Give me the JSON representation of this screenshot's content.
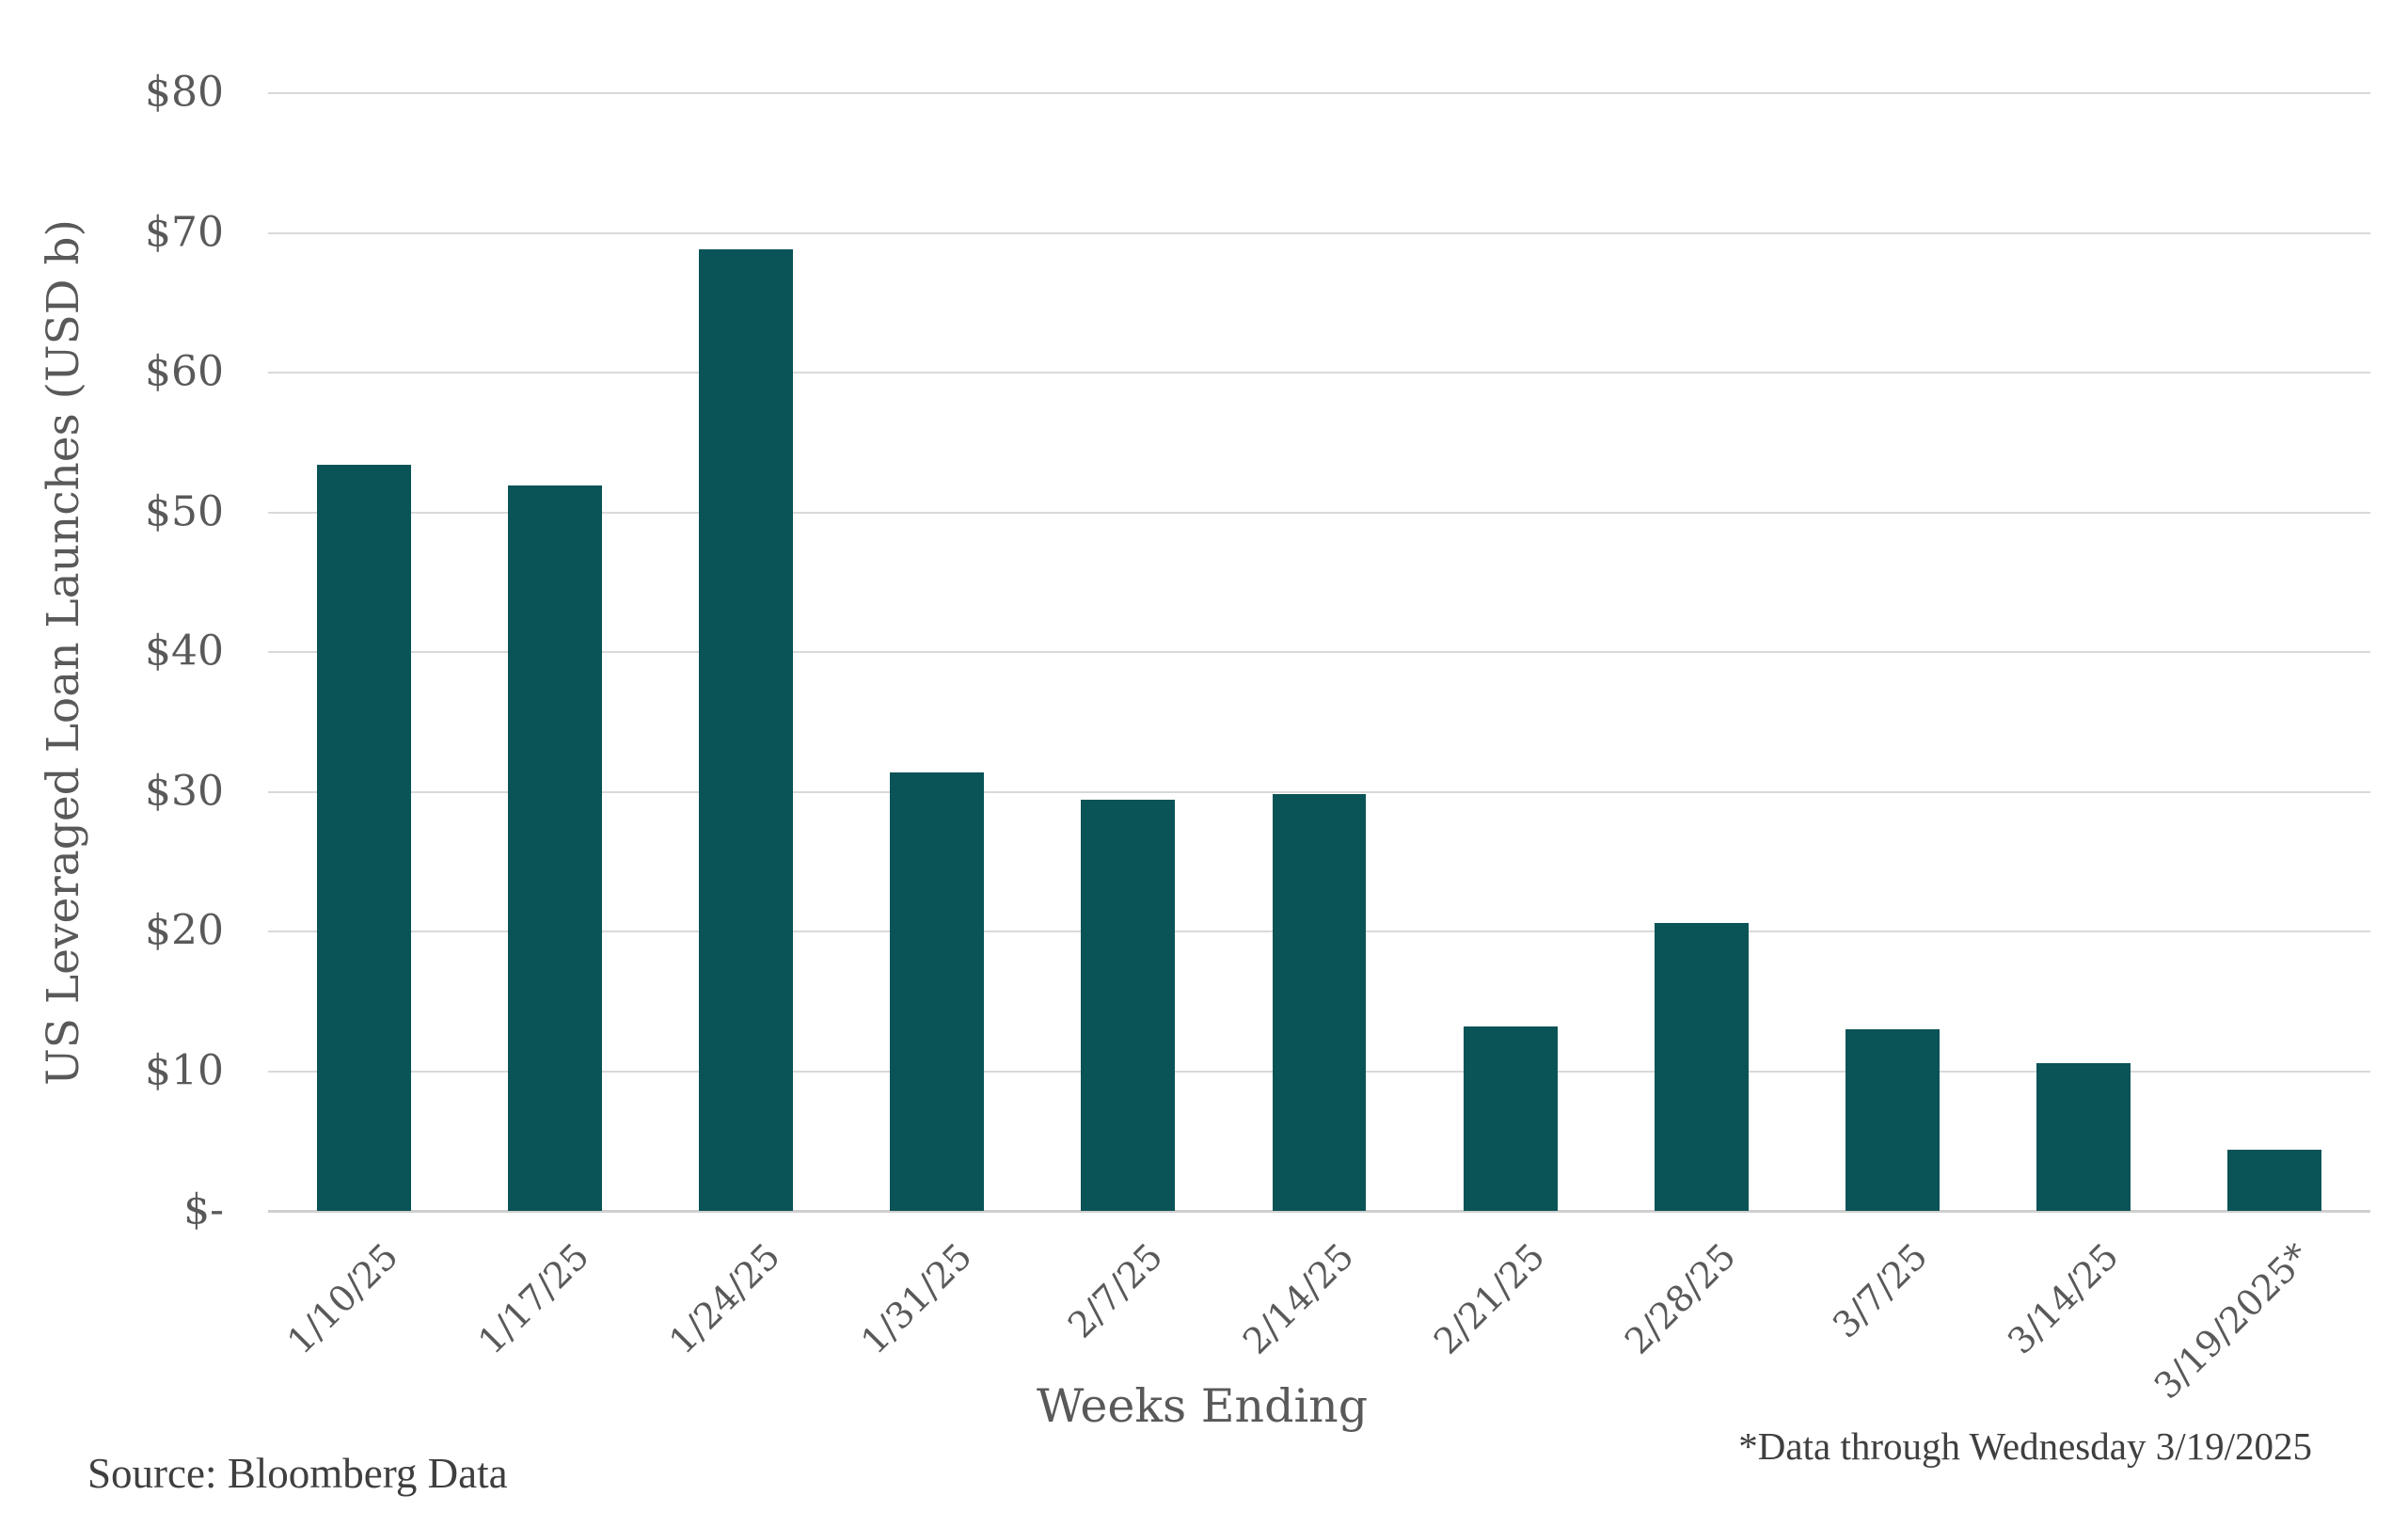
{
  "chart_data": {
    "type": "bar",
    "title": "",
    "categories": [
      "1/10/25",
      "1/17/25",
      "1/24/25",
      "1/31/25",
      "2/7/25",
      "2/14/25",
      "2/21/25",
      "2/28/25",
      "3/7/25",
      "3/14/25",
      "3/19/2025*"
    ],
    "values": [
      53.4,
      51.9,
      68.8,
      31.4,
      29.4,
      29.8,
      13.2,
      20.6,
      13.0,
      10.6,
      4.4
    ],
    "xlabel": "Weeks Ending",
    "ylabel": "US Leveraged Loan Launches (USD b)",
    "ylim": [
      0,
      80
    ],
    "y_ticks": [
      {
        "value": 0,
        "label": "$-"
      },
      {
        "value": 10,
        "label": "$10"
      },
      {
        "value": 20,
        "label": "$20"
      },
      {
        "value": 30,
        "label": "$30"
      },
      {
        "value": 40,
        "label": "$40"
      },
      {
        "value": 50,
        "label": "$50"
      },
      {
        "value": 60,
        "label": "$60"
      },
      {
        "value": 70,
        "label": "$70"
      },
      {
        "value": 80,
        "label": "$80"
      }
    ],
    "grid": true,
    "legend": "none",
    "colors": {
      "bar": "#0a5356",
      "gridline": "#d9d9d9",
      "axis_line": "#cfcfcf",
      "tick_text": "#595959",
      "footer_text": "#3f3f3f"
    }
  },
  "footer": {
    "source": "Source: Bloomberg Data",
    "footnote": "*Data through Wednesday 3/19/2025"
  }
}
